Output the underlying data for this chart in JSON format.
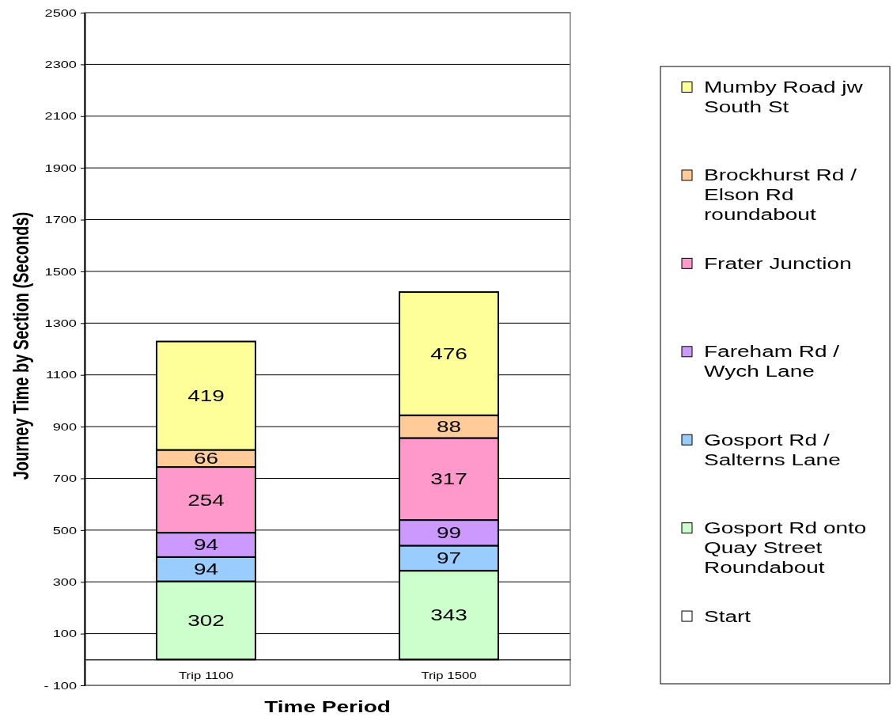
{
  "chart_data": {
    "type": "bar",
    "xlabel": "Time Period",
    "ylabel": "Journey Time by Section (Seconds)",
    "categories": [
      "Trip 1100",
      "Trip 1500"
    ],
    "series": [
      {
        "name": "Start",
        "color": "#ffffff",
        "values": [
          0,
          0
        ],
        "value_labels": [
          null,
          null
        ]
      },
      {
        "name": "Gosport Rd onto Quay Street Roundabout",
        "color": "#ccffcc",
        "values": [
          302,
          343
        ],
        "value_labels": [
          "302",
          "343"
        ]
      },
      {
        "name": "Gosport Rd / Salterns Lane",
        "color": "#99ccff",
        "values": [
          94,
          97
        ],
        "value_labels": [
          "94",
          "97"
        ]
      },
      {
        "name": "Fareham Rd / Wych Lane",
        "color": "#cc99ff",
        "values": [
          94,
          99
        ],
        "value_labels": [
          "94",
          "99"
        ]
      },
      {
        "name": "Frater Junction",
        "color": "#ff99cc",
        "values": [
          254,
          317
        ],
        "value_labels": [
          "254",
          "317"
        ]
      },
      {
        "name": "Brockhurst Rd / Elson Rd roundabout",
        "color": "#ffcc99",
        "values": [
          66,
          88
        ],
        "value_labels": [
          "66",
          "88"
        ]
      },
      {
        "name": "Mumby Road jw South St",
        "color": "#ffff99",
        "values": [
          419,
          476
        ],
        "value_labels": [
          "419",
          "476"
        ]
      }
    ],
    "stacked": true,
    "ylim": [
      -100,
      2500
    ],
    "yticks": [
      {
        "value": -100,
        "label": "- 100"
      },
      100,
      300,
      500,
      700,
      900,
      1100,
      1300,
      1500,
      1700,
      1900,
      2100,
      2300,
      2500
    ],
    "grid": "y",
    "legend": "right"
  }
}
